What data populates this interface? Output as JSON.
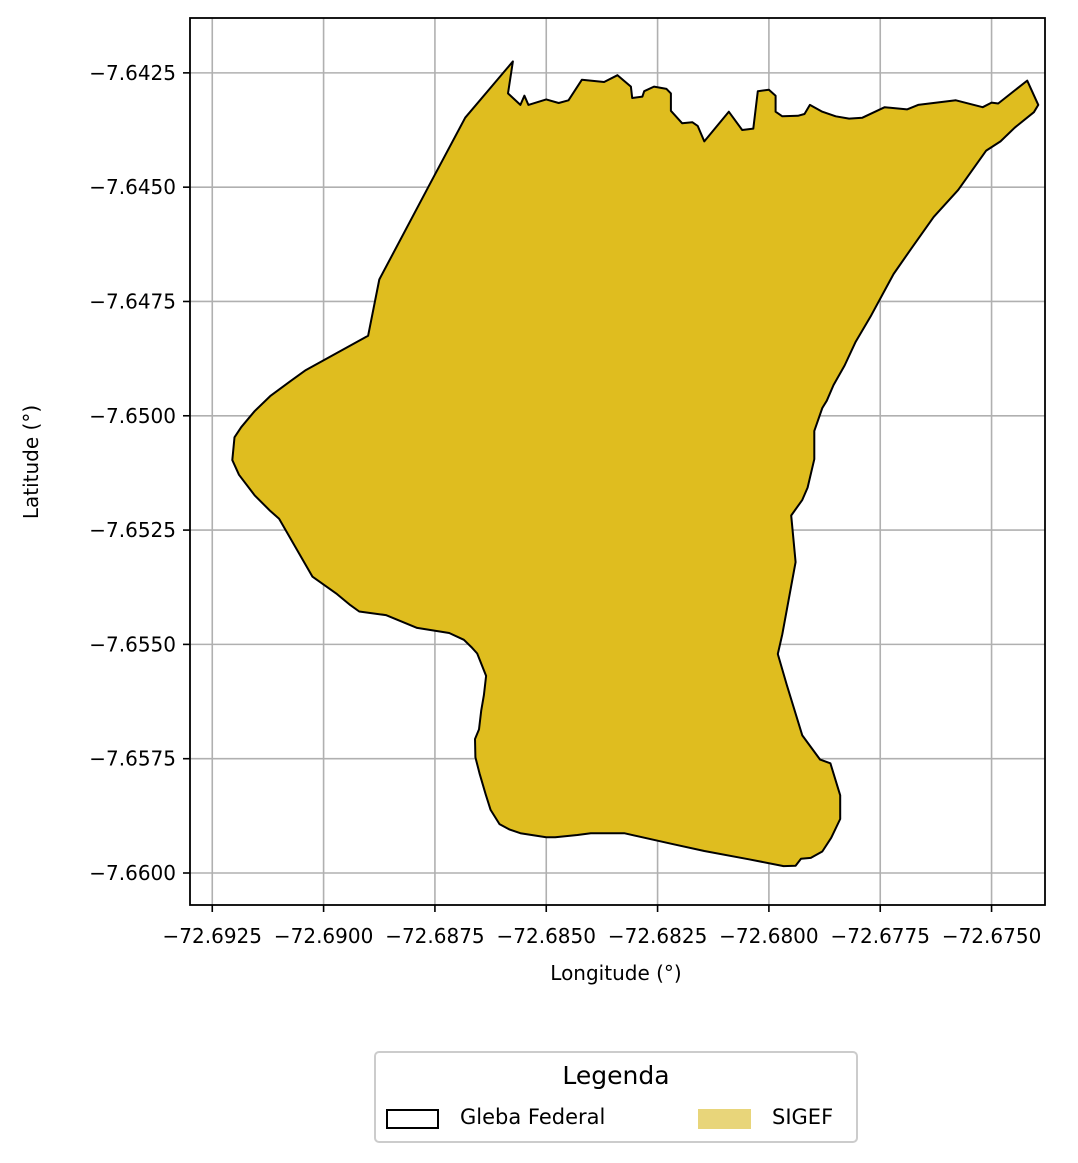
{
  "chart_data": {
    "type": "map",
    "xlabel": "Longitude (°)",
    "ylabel": "Latitude (°)",
    "xlim": [
      -72.693,
      -72.6738
    ],
    "ylim": [
      -7.6607,
      -7.6413
    ],
    "grid": true,
    "x_ticks": [
      -72.6925,
      -72.69,
      -72.6875,
      -72.685,
      -72.6825,
      -72.68,
      -72.6775,
      -72.675
    ],
    "x_tick_labels": [
      "−72.6925",
      "−72.6900",
      "−72.6875",
      "−72.6850",
      "−72.6825",
      "−72.6800",
      "−72.6775",
      "−72.6750"
    ],
    "y_ticks": [
      -7.6425,
      -7.645,
      -7.6475,
      -7.65,
      -7.6525,
      -7.655,
      -7.6575,
      -7.66
    ],
    "y_tick_labels": [
      "−7.6425",
      "−7.6450",
      "−7.6475",
      "−7.6500",
      "−7.6525",
      "−7.6550",
      "−7.6575",
      "−7.6600"
    ],
    "polygon": [
      [
        -72.68575,
        -7.64225
      ],
      [
        -72.68586,
        -7.64295
      ],
      [
        -72.68558,
        -7.6432
      ],
      [
        -72.68549,
        -7.643
      ],
      [
        -72.6854,
        -7.6432
      ],
      [
        -72.685,
        -7.64308
      ],
      [
        -72.68472,
        -7.64316
      ],
      [
        -72.6845,
        -7.6431
      ],
      [
        -72.6842,
        -7.64265
      ],
      [
        -72.6837,
        -7.6427
      ],
      [
        -72.6834,
        -7.64255
      ],
      [
        -72.6831,
        -7.6428
      ],
      [
        -72.68307,
        -7.64305
      ],
      [
        -72.68284,
        -7.64302
      ],
      [
        -72.6828,
        -7.6429
      ],
      [
        -72.68258,
        -7.6428
      ],
      [
        -72.6823,
        -7.64285
      ],
      [
        -72.6822,
        -7.64295
      ],
      [
        -72.6822,
        -7.64333
      ],
      [
        -72.68195,
        -7.6436
      ],
      [
        -72.68172,
        -7.64358
      ],
      [
        -72.6816,
        -7.64366
      ],
      [
        -72.68145,
        -7.644
      ],
      [
        -72.6809,
        -7.64335
      ],
      [
        -72.6806,
        -7.64375
      ],
      [
        -72.68035,
        -7.64372
      ],
      [
        -72.68025,
        -7.6429
      ],
      [
        -72.68,
        -7.64287
      ],
      [
        -72.67985,
        -7.643
      ],
      [
        -72.67985,
        -7.64335
      ],
      [
        -72.6797,
        -7.64345
      ],
      [
        -72.67935,
        -7.64344
      ],
      [
        -72.6792,
        -7.6434
      ],
      [
        -72.67908,
        -7.6432
      ],
      [
        -72.6788,
        -7.64335
      ],
      [
        -72.6785,
        -7.64345
      ],
      [
        -72.6782,
        -7.6435
      ],
      [
        -72.6779,
        -7.64348
      ],
      [
        -72.6774,
        -7.64325
      ],
      [
        -72.6769,
        -7.6433
      ],
      [
        -72.67665,
        -7.6432
      ],
      [
        -72.6758,
        -7.6431
      ],
      [
        -72.6752,
        -7.64325
      ],
      [
        -72.675,
        -7.64315
      ],
      [
        -72.67485,
        -7.64317
      ],
      [
        -72.6742,
        -7.64267
      ],
      [
        -72.67395,
        -7.6432
      ],
      [
        -72.67405,
        -7.64336
      ],
      [
        -72.67448,
        -7.6437
      ],
      [
        -72.6748,
        -7.644
      ],
      [
        -72.67512,
        -7.6442
      ],
      [
        -72.67575,
        -7.64506
      ],
      [
        -72.6763,
        -7.64565
      ],
      [
        -72.6768,
        -7.64634
      ],
      [
        -72.6772,
        -7.6469
      ],
      [
        -72.6777,
        -7.6478
      ],
      [
        -72.67805,
        -7.64838
      ],
      [
        -72.6783,
        -7.6489
      ],
      [
        -72.67855,
        -7.64933
      ],
      [
        -72.6787,
        -7.64967
      ],
      [
        -72.6788,
        -7.64983
      ],
      [
        -72.67898,
        -7.65033
      ],
      [
        -72.67898,
        -7.65095
      ],
      [
        -72.67913,
        -7.65157
      ],
      [
        -72.67925,
        -7.65184
      ],
      [
        -72.6795,
        -7.65218
      ],
      [
        -72.6794,
        -7.6532
      ],
      [
        -72.6797,
        -7.65478
      ],
      [
        -72.6798,
        -7.65521
      ],
      [
        -72.6796,
        -7.65588
      ],
      [
        -72.67925,
        -7.65699
      ],
      [
        -72.67885,
        -7.65752
      ],
      [
        -72.67862,
        -7.6576
      ],
      [
        -72.6784,
        -7.6583
      ],
      [
        -72.6784,
        -7.65882
      ],
      [
        -72.6786,
        -7.65923
      ],
      [
        -72.6788,
        -7.65953
      ],
      [
        -72.67906,
        -7.65967
      ],
      [
        -72.67928,
        -7.65969
      ],
      [
        -72.6794,
        -7.65984
      ],
      [
        -72.67967,
        -7.65985
      ],
      [
        -72.68045,
        -7.6597
      ],
      [
        -72.68145,
        -7.65952
      ],
      [
        -72.68215,
        -7.65937
      ],
      [
        -72.68325,
        -7.65913
      ],
      [
        -72.684,
        -7.65913
      ],
      [
        -72.6843,
        -7.65917
      ],
      [
        -72.6848,
        -7.65922
      ],
      [
        -72.685,
        -7.65922
      ],
      [
        -72.68558,
        -7.65913
      ],
      [
        -72.68582,
        -7.65905
      ],
      [
        -72.68605,
        -7.65893
      ],
      [
        -72.68625,
        -7.65862
      ],
      [
        -72.68636,
        -7.65828
      ],
      [
        -72.6865,
        -7.65782
      ],
      [
        -72.68659,
        -7.65747
      ],
      [
        -72.6866,
        -7.65707
      ],
      [
        -72.68651,
        -7.65686
      ],
      [
        -72.68646,
        -7.65645
      ],
      [
        -72.6864,
        -7.65611
      ],
      [
        -72.68635,
        -7.65569
      ],
      [
        -72.68655,
        -7.6552
      ],
      [
        -72.68668,
        -7.65506
      ],
      [
        -72.68685,
        -7.6549
      ],
      [
        -72.68718,
        -7.65475
      ],
      [
        -72.6879,
        -7.65464
      ],
      [
        -72.6886,
        -7.65436
      ],
      [
        -72.6892,
        -7.65428
      ],
      [
        -72.6894,
        -7.65414
      ],
      [
        -72.6897,
        -7.6539
      ],
      [
        -72.69025,
        -7.65352
      ],
      [
        -72.691,
        -7.65225
      ],
      [
        -72.6912,
        -7.65208
      ],
      [
        -72.69155,
        -7.65174
      ],
      [
        -72.6919,
        -7.65129
      ],
      [
        -72.69205,
        -7.65097
      ],
      [
        -72.692,
        -7.65047
      ],
      [
        -72.69185,
        -7.65025
      ],
      [
        -72.69155,
        -7.6499
      ],
      [
        -72.6912,
        -7.64957
      ],
      [
        -72.6908,
        -7.64928
      ],
      [
        -72.6904,
        -7.649
      ],
      [
        -72.689,
        -7.64825
      ],
      [
        -72.68875,
        -7.64702
      ],
      [
        -72.68765,
        -7.645
      ],
      [
        -72.68682,
        -7.64348
      ]
    ],
    "style": {
      "fill": "#dfbd1f",
      "edge": "#000000",
      "grid_color": "#b0b0b0"
    }
  },
  "legend": {
    "title": "Legenda",
    "items": [
      {
        "label": "Gleba Federal",
        "fill": "none",
        "edge": "#000000"
      },
      {
        "label": "SIGEF",
        "fill": "#e8d57a",
        "edge": "none"
      }
    ]
  }
}
